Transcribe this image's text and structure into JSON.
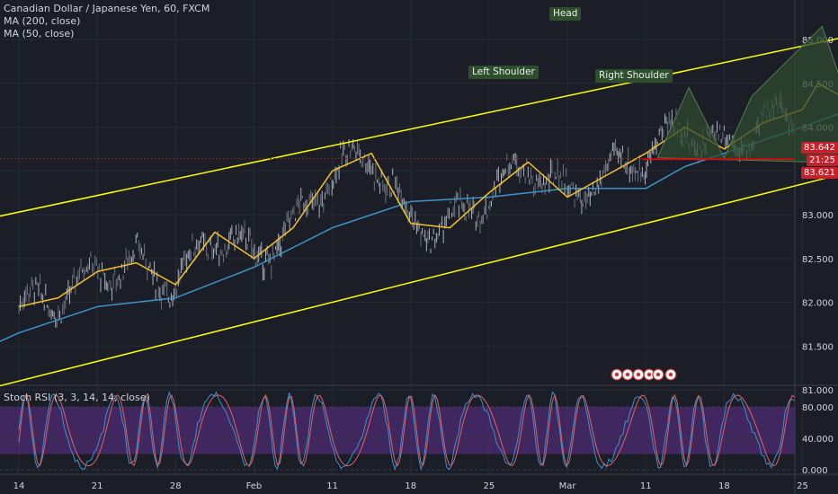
{
  "header": {
    "symbol_title": "Canadian Dollar / Japanese Yen, 60, FXCM",
    "ma200_label": "MA (200, close)",
    "ma50_label": "MA (50, close)"
  },
  "indicator": {
    "title": "Stoch RSI (3, 3, 14, 14, close)"
  },
  "price_tags": {
    "upper": "83.642",
    "middle": "21:25",
    "lower": "83.621"
  },
  "pattern_labels": {
    "head": "Head",
    "left_shoulder": "Left Shoulder",
    "right_shoulder": "Right Shoulder"
  },
  "colors": {
    "background": "#1b1e27",
    "grid": "#262a35",
    "channel": "#ffff00",
    "ma50": "#f3c12b",
    "ma200": "#3f93c9",
    "candle_up": "#aab2be",
    "candle_down": "#6b7380",
    "stoch_k": "#3b8fd4",
    "stoch_d": "#e0625e",
    "stoch_band": "#5b2d86",
    "support": "#ff0000",
    "pattern_fill": "#2f4a2f",
    "tag_red": "#c8202a"
  },
  "icons": [
    "event-flag-icon",
    "event-flag-icon",
    "event-flag-icon",
    "event-flag-icon",
    "event-flag-icon",
    "event-dot-icon",
    "event-dot-icon"
  ],
  "chart_data": [
    {
      "type": "line",
      "title": "Canadian Dollar / Japanese Yen, 60, FXCM",
      "x_ticks": [
        "14",
        "21",
        "28",
        "Feb",
        "11",
        "18",
        "25",
        "Mar",
        "11",
        "18",
        "25"
      ],
      "y_ticks": [
        "85.000",
        "84.500",
        "84.000",
        "83.500",
        "83.000",
        "82.500",
        "82.000",
        "81.500",
        "81.000"
      ],
      "ylim": [
        80.7,
        85.5
      ],
      "grid": true,
      "series": [
        {
          "name": "MA (50, close)",
          "points": [
            [
              0.0,
              81.95
            ],
            [
              0.5,
              82.05
            ],
            [
              1.0,
              82.35
            ],
            [
              1.5,
              82.45
            ],
            [
              2.0,
              82.2
            ],
            [
              2.5,
              82.8
            ],
            [
              3.0,
              82.5
            ],
            [
              3.5,
              82.85
            ],
            [
              4.0,
              83.5
            ],
            [
              4.5,
              83.7
            ],
            [
              5.0,
              82.9
            ],
            [
              5.5,
              82.85
            ],
            [
              6.0,
              83.25
            ],
            [
              6.5,
              83.6
            ],
            [
              7.0,
              83.2
            ],
            [
              7.5,
              83.45
            ],
            [
              8.0,
              83.7
            ],
            [
              8.5,
              84.0
            ],
            [
              9.0,
              83.75
            ],
            [
              9.5,
              84.05
            ],
            [
              10.0,
              84.2
            ],
            [
              10.2,
              84.5
            ],
            [
              10.6,
              84.3
            ],
            [
              11.1,
              83.95
            ]
          ]
        },
        {
          "name": "MA (200, close)",
          "points": [
            [
              -2.0,
              80.8
            ],
            [
              -1.0,
              81.25
            ],
            [
              0.0,
              81.65
            ],
            [
              1.0,
              81.95
            ],
            [
              2.0,
              82.05
            ],
            [
              3.0,
              82.4
            ],
            [
              4.0,
              82.85
            ],
            [
              5.0,
              83.15
            ],
            [
              6.0,
              83.2
            ],
            [
              7.0,
              83.3
            ],
            [
              8.0,
              83.3
            ],
            [
              8.5,
              83.55
            ],
            [
              9.0,
              83.7
            ],
            [
              9.5,
              83.85
            ],
            [
              10.0,
              84.0
            ],
            [
              10.6,
              84.2
            ],
            [
              11.1,
              84.15
            ]
          ]
        },
        {
          "name": "Upper channel",
          "points": [
            [
              -2.0,
              82.65
            ],
            [
              12.5,
              85.4
            ]
          ]
        },
        {
          "name": "Lower channel",
          "points": [
            [
              -2.0,
              80.65
            ],
            [
              14.0,
              84.25
            ]
          ]
        }
      ],
      "annotations": [
        {
          "text": "Head",
          "x": 10.25,
          "y": 85.15
        },
        {
          "text": "Left Shoulder",
          "x": 8.55,
          "y": 84.4
        },
        {
          "text": "Right Shoulder",
          "x": 11.55,
          "y": 84.4
        },
        {
          "text": "83.642",
          "type": "price-line",
          "y": 83.642
        },
        {
          "text": "83.621",
          "type": "price-line",
          "y": 83.621
        }
      ]
    },
    {
      "type": "line",
      "title": "Stoch RSI (3, 3, 14, 14, close)",
      "y_ticks": [
        "80.000",
        "40.000",
        "0.000"
      ],
      "ylim": [
        -5,
        100
      ],
      "band": [
        20,
        80
      ],
      "grid": true
    }
  ]
}
